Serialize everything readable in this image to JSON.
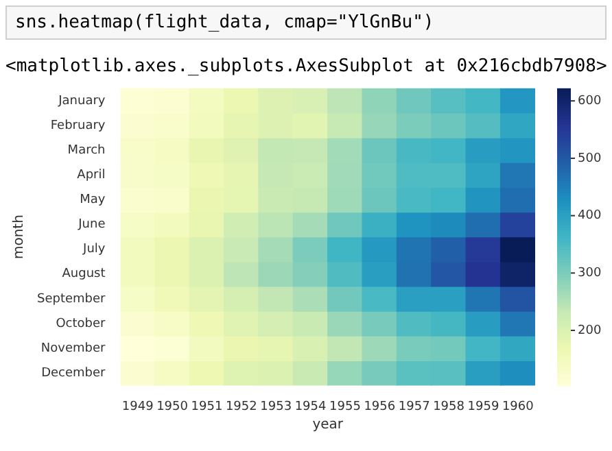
{
  "chart_data": {
    "type": "heatmap",
    "xlabel": "year",
    "ylabel": "month",
    "annotations": [
      "sns.heatmap(flight_data, cmap=\"YlGnBu\")",
      "<matplotlib.axes._subplots.AxesSubplot at 0x216cbdb7908>"
    ],
    "categories": [
      "1949",
      "1950",
      "1951",
      "1952",
      "1953",
      "1954",
      "1955",
      "1956",
      "1957",
      "1958",
      "1959",
      "1960"
    ],
    "y_categories": [
      "January",
      "February",
      "March",
      "April",
      "May",
      "June",
      "July",
      "August",
      "September",
      "October",
      "November",
      "December"
    ],
    "cells": [
      [
        112,
        115,
        145,
        171,
        196,
        204,
        242,
        284,
        315,
        340,
        360,
        417
      ],
      [
        118,
        126,
        150,
        180,
        196,
        188,
        233,
        277,
        301,
        318,
        342,
        391
      ],
      [
        132,
        141,
        178,
        193,
        236,
        235,
        267,
        317,
        356,
        362,
        406,
        419
      ],
      [
        129,
        135,
        163,
        181,
        235,
        227,
        269,
        313,
        348,
        348,
        396,
        461
      ],
      [
        121,
        125,
        172,
        183,
        229,
        234,
        270,
        318,
        355,
        363,
        420,
        472
      ],
      [
        135,
        149,
        178,
        218,
        243,
        264,
        315,
        374,
        422,
        435,
        472,
        535
      ],
      [
        148,
        170,
        199,
        230,
        264,
        302,
        364,
        413,
        465,
        491,
        548,
        622
      ],
      [
        148,
        170,
        199,
        242,
        272,
        293,
        347,
        405,
        467,
        505,
        559,
        606
      ],
      [
        136,
        158,
        184,
        209,
        237,
        259,
        312,
        355,
        404,
        404,
        463,
        508
      ],
      [
        119,
        133,
        162,
        191,
        211,
        229,
        274,
        306,
        347,
        359,
        407,
        461
      ],
      [
        104,
        114,
        146,
        172,
        180,
        203,
        237,
        271,
        305,
        310,
        362,
        390
      ],
      [
        118,
        140,
        166,
        194,
        201,
        229,
        278,
        306,
        336,
        337,
        405,
        432
      ]
    ],
    "clim": [
      104,
      622
    ],
    "cticks": [
      200,
      300,
      400,
      500,
      600
    ]
  }
}
